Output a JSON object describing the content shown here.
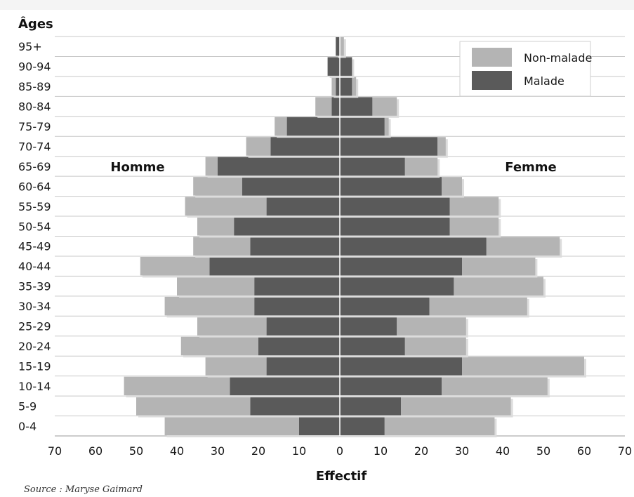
{
  "chart_data": {
    "type": "bar",
    "orientation": "horizontal-population-pyramid",
    "title": "Âges",
    "xlabel": "Effectif",
    "left_group_label": "Homme",
    "right_group_label": "Femme",
    "xlim": [
      -70,
      70
    ],
    "xticks": [
      70,
      60,
      50,
      40,
      30,
      20,
      10,
      0,
      10,
      20,
      30,
      40,
      50,
      60,
      70
    ],
    "grid": true,
    "legend_position": "top-right",
    "categories": [
      "0-4",
      "5-9",
      "10-14",
      "15-19",
      "20-24",
      "25-29",
      "30-34",
      "35-39",
      "40-44",
      "45-49",
      "50-54",
      "55-59",
      "60-64",
      "65-69",
      "70-74",
      "75-79",
      "80-84",
      "85-89",
      "90-94",
      "95+"
    ],
    "series": [
      {
        "name": "Non-malade",
        "color": "#b4b4b4",
        "homme_values": [
          33,
          28,
          26,
          15,
          19,
          17,
          22,
          19,
          17,
          14,
          9,
          20,
          12,
          3,
          6,
          3,
          4,
          1,
          0,
          0
        ],
        "femme_values": [
          27,
          27,
          26,
          30,
          15,
          17,
          24,
          22,
          18,
          18,
          12,
          12,
          5,
          8,
          2,
          1,
          6,
          1,
          0,
          1
        ]
      },
      {
        "name": "Malade",
        "color": "#5a5a5a",
        "homme_values": [
          10,
          22,
          27,
          18,
          20,
          18,
          21,
          21,
          32,
          22,
          26,
          18,
          24,
          30,
          17,
          13,
          2,
          1,
          3,
          1
        ],
        "femme_values": [
          11,
          15,
          25,
          30,
          16,
          14,
          22,
          28,
          30,
          36,
          27,
          27,
          25,
          16,
          24,
          11,
          8,
          3,
          3,
          0
        ]
      }
    ]
  },
  "source": "Source : Maryse Gaimard"
}
